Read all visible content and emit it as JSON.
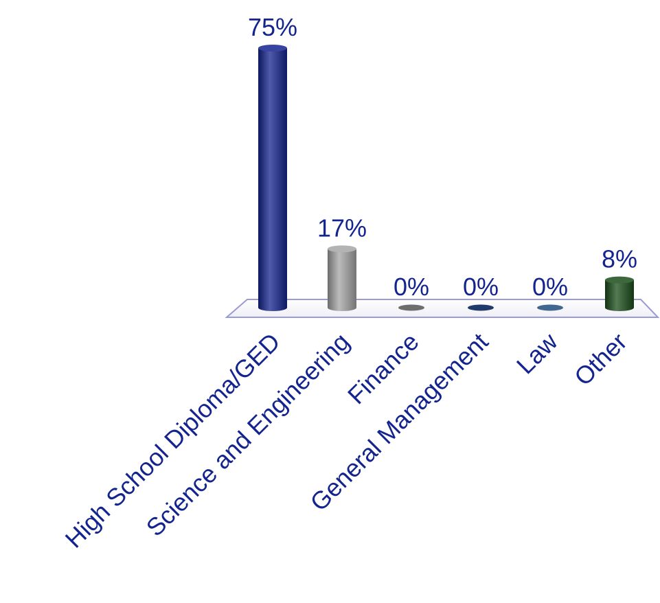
{
  "chart_data": {
    "type": "bar",
    "title": "",
    "xlabel": "",
    "ylabel": "",
    "ylim": [
      0,
      75
    ],
    "categories": [
      "High School Diploma/GED",
      "Science and Engineering",
      "Finance",
      "General Management",
      "Law",
      "Other"
    ],
    "values": [
      75,
      17,
      0,
      0,
      0,
      8
    ],
    "value_labels": [
      "75%",
      "17%",
      "0%",
      "0%",
      "0%",
      "8%"
    ],
    "colors": [
      "#14248f",
      "#a6a6a6",
      "#6e6e6e",
      "#1f3a6b",
      "#41668f",
      "#1a4d1a"
    ],
    "label_color": "#14248f",
    "grid": false,
    "legend": "none"
  }
}
